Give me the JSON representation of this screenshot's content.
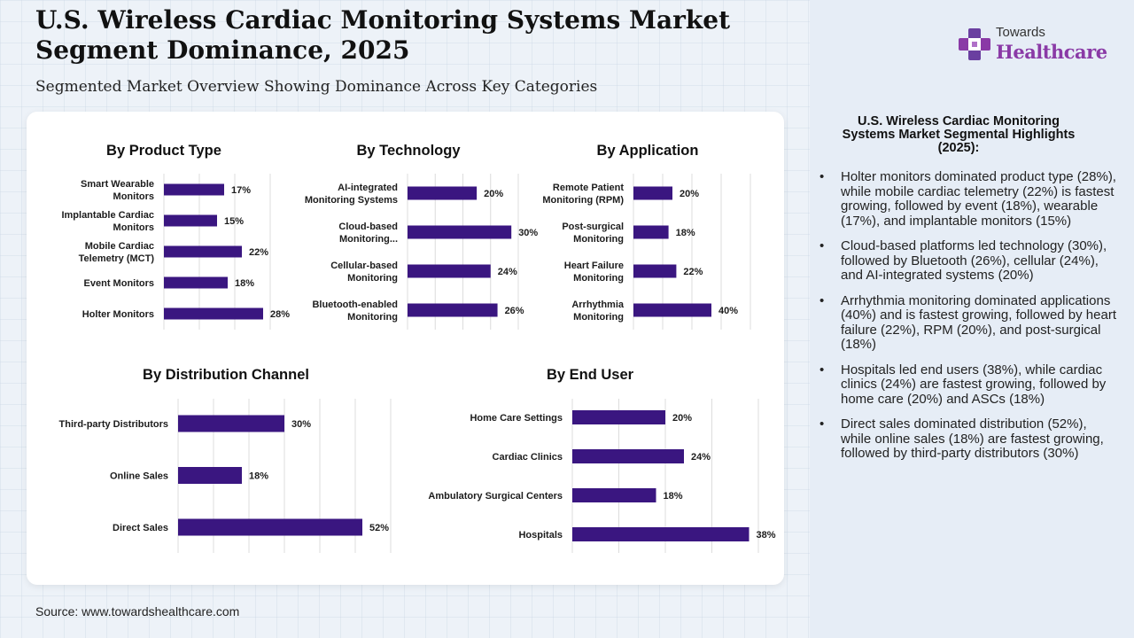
{
  "header": {
    "title": "U.S. Wireless Cardiac Monitoring Systems Market\nSegment Dominance, 2025",
    "subtitle": "Segmented Market Overview Showing Dominance Across Key Categories"
  },
  "footer": {
    "source": "Source: www.towardshealthcare.com"
  },
  "brand": {
    "top": "Towards",
    "main": "Healthcare",
    "color": "#8a3aa6",
    "accent": "#6a3fa0"
  },
  "colors": {
    "bar": "#3a1680",
    "grid": "#dcdcdc",
    "text": "#1c1c1c"
  },
  "chart_data": [
    {
      "type": "bar",
      "orientation": "horizontal",
      "title": "By Product Type",
      "categories": [
        "Smart Wearable\nMonitors",
        "Implantable Cardiac\nMonitors",
        "Mobile Cardiac\nTelemetry (MCT)",
        "Event Monitors",
        "Holter Monitors"
      ],
      "values": [
        17,
        15,
        22,
        18,
        28
      ],
      "unit": "%",
      "xlim": [
        0,
        30
      ],
      "grid": true
    },
    {
      "type": "bar",
      "orientation": "horizontal",
      "title": "By Technology",
      "categories": [
        "AI-integrated\nMonitoring Systems",
        "Cloud-based\nMonitoring...",
        "Cellular-based\nMonitoring",
        "Bluetooth-enabled\nMonitoring"
      ],
      "values": [
        20,
        30,
        24,
        26
      ],
      "unit": "%",
      "xlim": [
        0,
        32
      ],
      "grid": true
    },
    {
      "type": "bar",
      "orientation": "horizontal",
      "title": "By Application",
      "categories": [
        "Remote Patient\nMonitoring (RPM)",
        "Post-surgical\nMonitoring",
        "Heart Failure\nMonitoring",
        "Arrhythmia\nMonitoring"
      ],
      "values": [
        20,
        18,
        22,
        40
      ],
      "unit": "%",
      "xlim": [
        0,
        60
      ],
      "grid": true
    },
    {
      "type": "bar",
      "orientation": "horizontal",
      "title": "By Distribution Channel",
      "categories": [
        "Third-party Distributors",
        "Online Sales",
        "Direct Sales"
      ],
      "values": [
        30,
        18,
        52
      ],
      "unit": "%",
      "xlim": [
        0,
        60
      ],
      "grid": true
    },
    {
      "type": "bar",
      "orientation": "horizontal",
      "title": "By End User",
      "categories": [
        "Home Care Settings",
        "Cardiac Clinics",
        "Ambulatory Surgical Centers",
        "Hospitals"
      ],
      "values": [
        20,
        24,
        18,
        38
      ],
      "unit": "%",
      "xlim": [
        0,
        40
      ],
      "grid": true
    }
  ],
  "highlights": {
    "title": "U.S. Wireless Cardiac Monitoring\nSystems Market Segmental Highlights\n(2025):",
    "items": [
      "Holter monitors dominated product type (28%), while mobile cardiac telemetry (22%) is fastest growing, followed by event (18%), wearable (17%), and implantable monitors (15%)",
      "Cloud-based platforms led technology (30%), followed by Bluetooth (26%), cellular (24%), and AI-integrated systems (20%)",
      "Arrhythmia monitoring dominated applications (40%) and is fastest growing, followed by heart failure (22%), RPM (20%), and post-surgical (18%)",
      "Hospitals led end users (38%), while cardiac clinics (24%) are fastest growing, followed by home care (20%) and ASCs (18%)",
      "Direct sales dominated distribution (52%), while online sales (18%) are fastest growing, followed by third-party distributors (30%)"
    ]
  }
}
